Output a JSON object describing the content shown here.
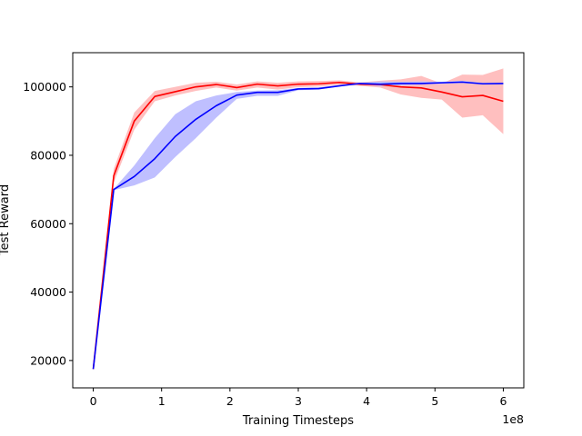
{
  "chart_data": {
    "type": "line",
    "title": "",
    "xlabel": "Training Timesteps",
    "ylabel": "Test Reward",
    "x_offset_label": "1e8",
    "xlim": [
      -0.3,
      6.3
    ],
    "ylim": [
      12000,
      110000
    ],
    "x_ticks": [
      0,
      1,
      2,
      3,
      4,
      5,
      6
    ],
    "x_tick_labels": [
      "0",
      "1",
      "2",
      "3",
      "4",
      "5",
      "6"
    ],
    "y_ticks": [
      20000,
      40000,
      60000,
      80000,
      100000
    ],
    "y_tick_labels": [
      "20000",
      "40000",
      "60000",
      "80000",
      "100000"
    ],
    "grid": false,
    "legend": "none",
    "x": [
      0,
      0.3,
      0.6,
      0.9,
      1.2,
      1.5,
      1.8,
      2.1,
      2.4,
      2.7,
      3.0,
      3.3,
      3.6,
      3.9,
      4.2,
      4.5,
      4.8,
      5.1,
      5.4,
      5.7,
      6.0
    ],
    "series": [
      {
        "color": "#ff0000",
        "band_color": "#ffbfbf",
        "values": [
          17500,
          74000,
          90000,
          97200,
          98600,
          100000,
          100700,
          99800,
          100800,
          100300,
          100800,
          100900,
          101300,
          100800,
          100700,
          100000,
          99700,
          98500,
          97100,
          97500,
          95800
        ],
        "upper": [
          17500,
          76000,
          92500,
          98800,
          100000,
          101200,
          101500,
          100700,
          101600,
          101200,
          101600,
          101700,
          101900,
          101300,
          101800,
          102200,
          103200,
          101000,
          103600,
          103500,
          105400
        ],
        "lower": [
          17500,
          72000,
          87500,
          95800,
          97500,
          98800,
          99800,
          98900,
          99800,
          99200,
          99900,
          100100,
          100600,
          100300,
          99800,
          97800,
          96800,
          96300,
          91000,
          91700,
          86200
        ]
      },
      {
        "color": "#0000ff",
        "band_color": "#bfbfff",
        "values": [
          17500,
          70000,
          73800,
          79000,
          85500,
          90500,
          94500,
          97600,
          98400,
          98400,
          99400,
          99500,
          100300,
          101000,
          100800,
          101000,
          101000,
          101200,
          101400,
          100900,
          101000
        ],
        "upper": [
          17500,
          70200,
          77000,
          85000,
          92000,
          95800,
          97500,
          98500,
          98900,
          99000,
          99700,
          99900,
          100500,
          101200,
          101600,
          101500,
          101600,
          101500,
          101800,
          101200,
          101200
        ],
        "lower": [
          17500,
          69800,
          71200,
          73500,
          79500,
          85000,
          91000,
          96500,
          97400,
          97400,
          99000,
          99200,
          100100,
          100800,
          100200,
          100500,
          100700,
          100900,
          101100,
          100700,
          100800
        ]
      }
    ]
  }
}
